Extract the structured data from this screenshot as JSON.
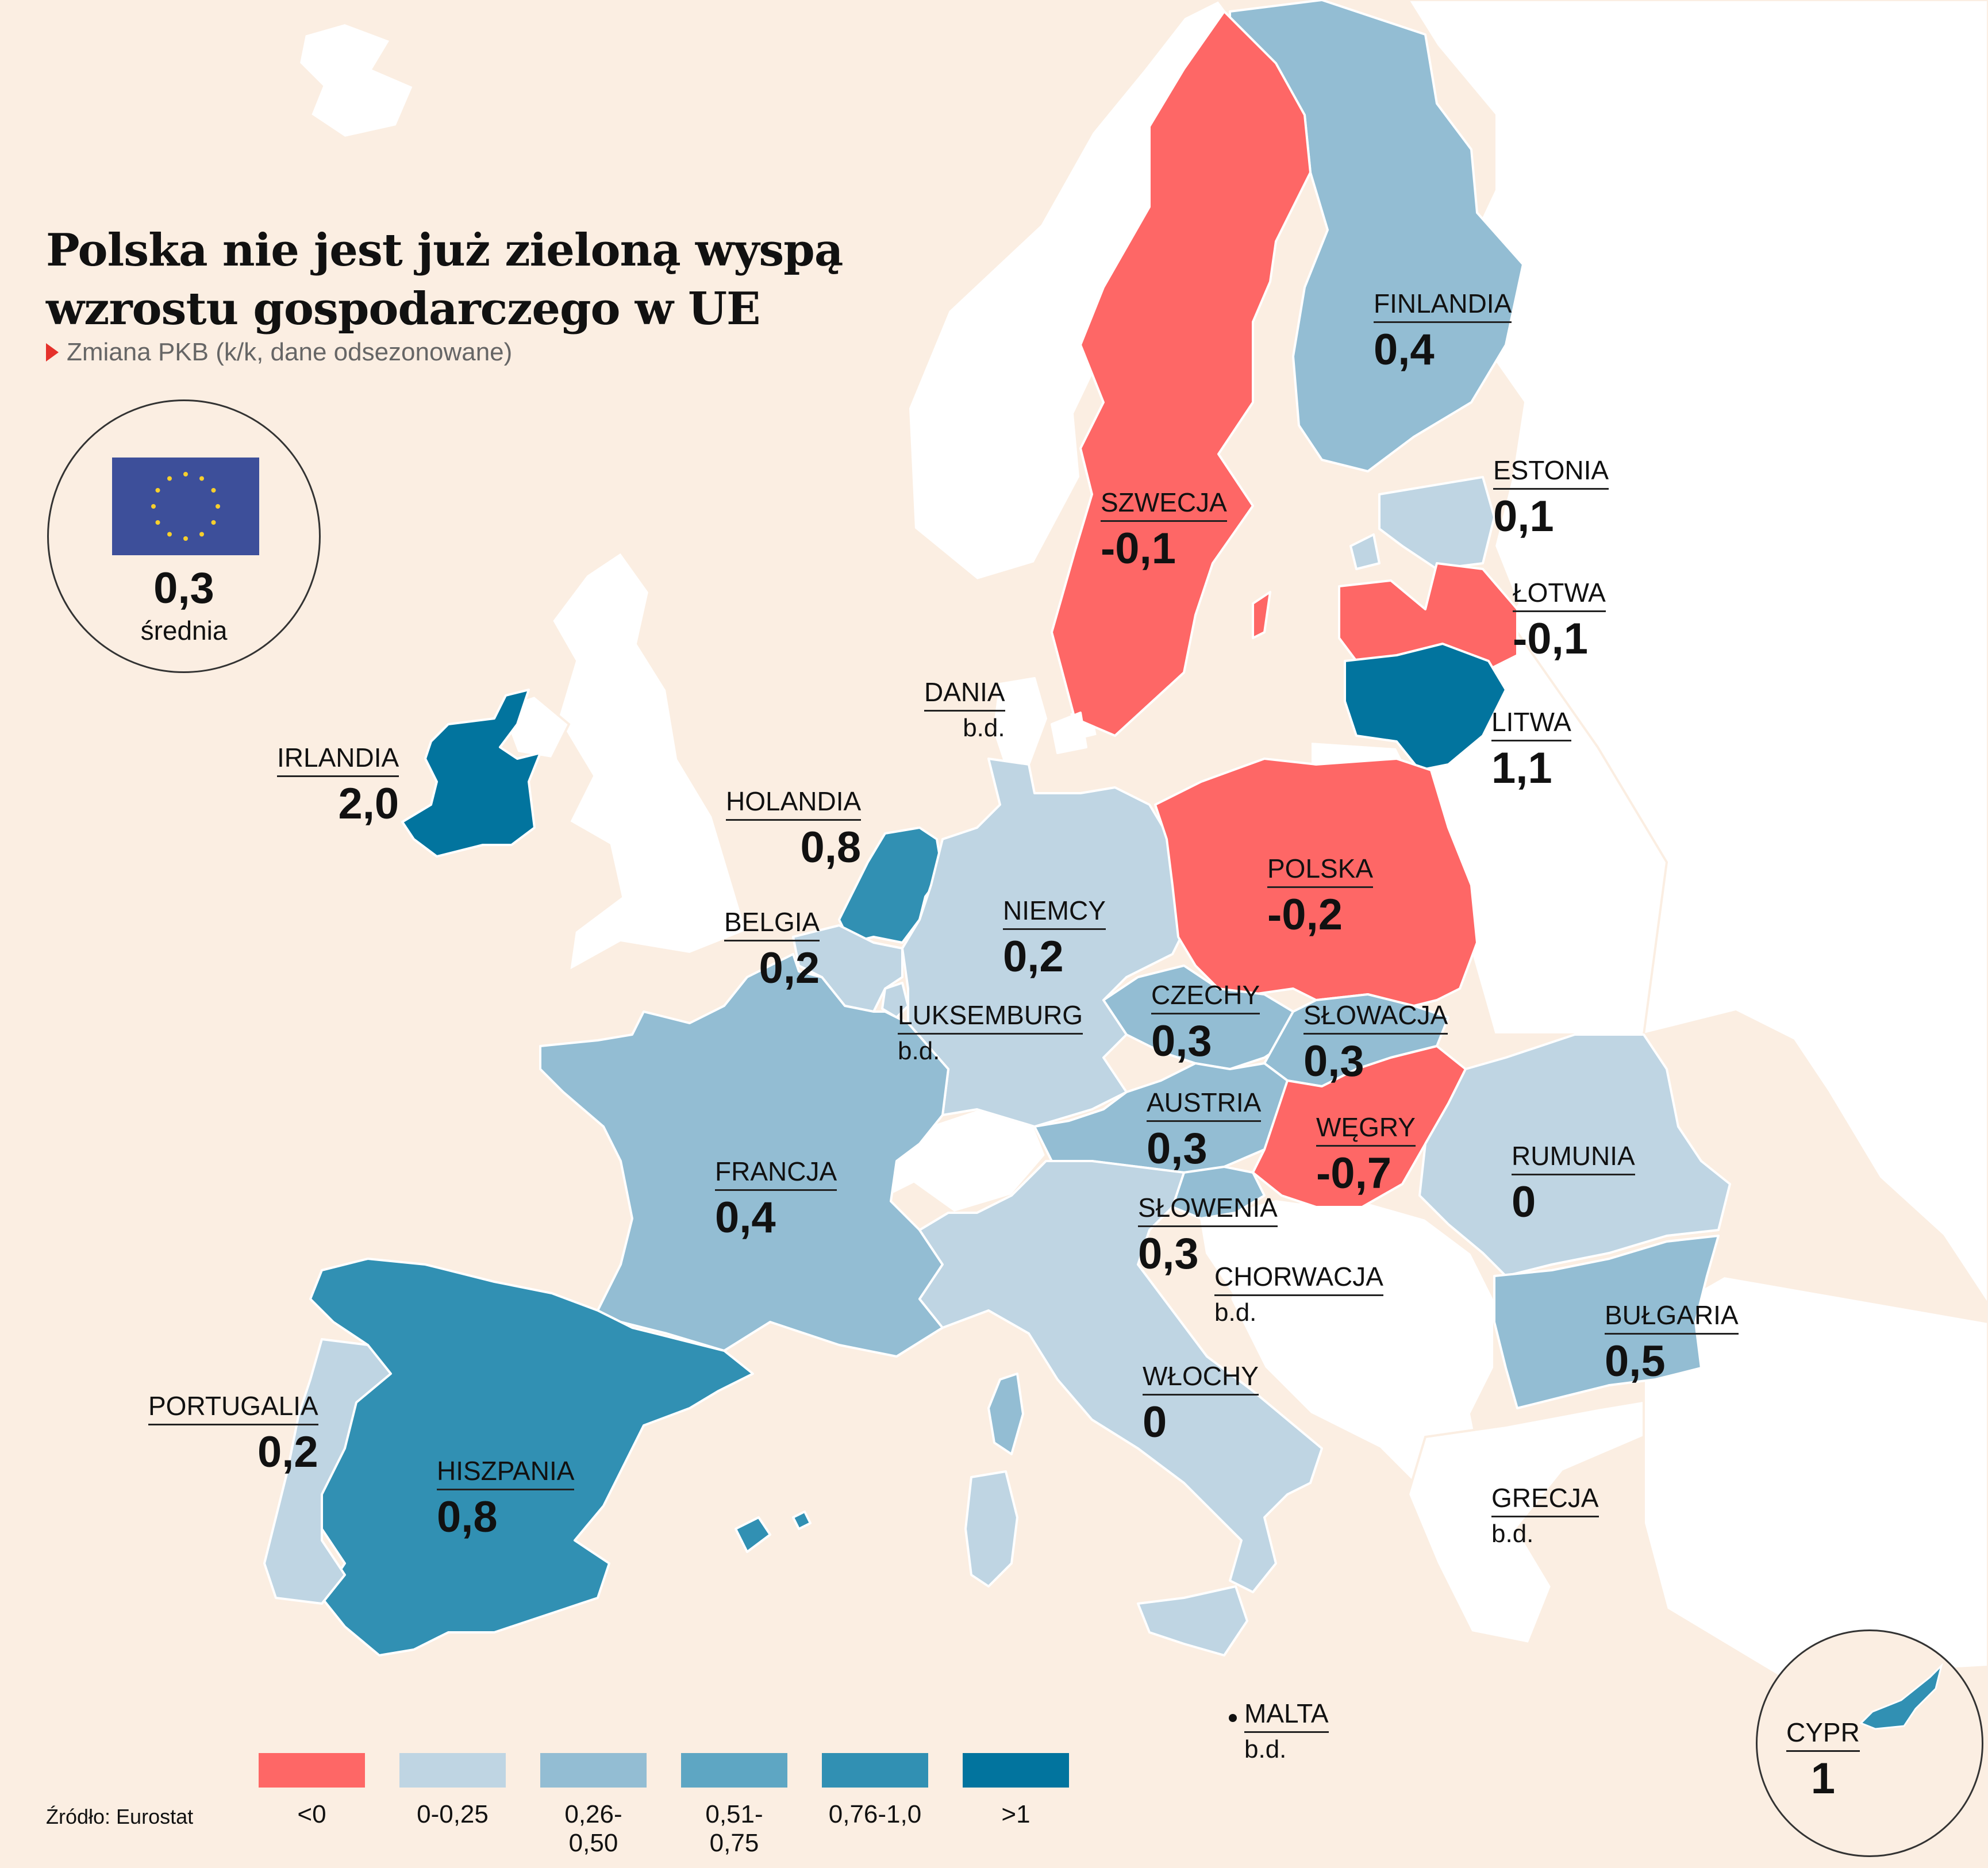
{
  "title_line1": "Polska nie jest już zieloną wyspą",
  "title_line2": "wzrostu gospodarczego w UE",
  "subtitle": "Zmiana PKB (k/k, dane odsezonowane)",
  "average": {
    "value": "0,3",
    "label": "średnia"
  },
  "source": "Źródło: Eurostat",
  "no_data": "b.d.",
  "colors": {
    "negative": "#fe6766",
    "c0_025": "#bfd5e3",
    "c026_050": "#93bdd3",
    "c051_075": "#5ea6c3",
    "c076_100": "#3190b3",
    "over1": "#02749e",
    "nodata": "#ffffff",
    "background": "#fbeee2"
  },
  "legend": [
    {
      "label": "<0",
      "color": "#fe6766"
    },
    {
      "label": "0-0,25",
      "color": "#bfd5e3"
    },
    {
      "label": "0,26-0,50",
      "color": "#93bdd3"
    },
    {
      "label": "0,51-0,75",
      "color": "#5ea6c3"
    },
    {
      "label": "0,76-1,0",
      "color": "#3190b3"
    },
    {
      "label": ">1",
      "color": "#02749e"
    }
  ],
  "countries": {
    "finlandia": {
      "name": "FINLANDIA",
      "value": "0,4"
    },
    "estonia": {
      "name": "ESTONIA",
      "value": "0,1"
    },
    "szwecja": {
      "name": "SZWECJA",
      "value": "-0,1"
    },
    "lotwa": {
      "name": "ŁOTWA",
      "value": "-0,1"
    },
    "litwa": {
      "name": "LITWA",
      "value": "1,1"
    },
    "dania": {
      "name": "DANIA",
      "value": "b.d."
    },
    "irlandia": {
      "name": "IRLANDIA",
      "value": "2,0"
    },
    "holandia": {
      "name": "HOLANDIA",
      "value": "0,8"
    },
    "belgia": {
      "name": "BELGIA",
      "value": "0,2"
    },
    "niemcy": {
      "name": "NIEMCY",
      "value": "0,2"
    },
    "polska": {
      "name": "POLSKA",
      "value": "-0,2"
    },
    "luksemburg": {
      "name": "LUKSEMBURG",
      "value": "b.d."
    },
    "czechy": {
      "name": "CZECHY",
      "value": "0,3"
    },
    "slowacja": {
      "name": "SŁOWACJA",
      "value": "0,3"
    },
    "austria": {
      "name": "AUSTRIA",
      "value": "0,3"
    },
    "wegry": {
      "name": "WĘGRY",
      "value": "-0,7"
    },
    "francja": {
      "name": "FRANCJA",
      "value": "0,4"
    },
    "slowenia": {
      "name": "SŁOWENIA",
      "value": "0,3"
    },
    "chorwacja": {
      "name": "CHORWACJA",
      "value": "b.d."
    },
    "rumunia": {
      "name": "RUMUNIA",
      "value": "0"
    },
    "bulgaria": {
      "name": "BUŁGARIA",
      "value": "0,5"
    },
    "portugalia": {
      "name": "PORTUGALIA",
      "value": "0,2"
    },
    "hiszpania": {
      "name": "HISZPANIA",
      "value": "0,8"
    },
    "wlochy": {
      "name": "WŁOCHY",
      "value": "0"
    },
    "grecja": {
      "name": "GRECJA",
      "value": "b.d."
    },
    "malta": {
      "name": "MALTA",
      "value": "b.d."
    },
    "cypr": {
      "name": "CYPR",
      "value": "1"
    }
  }
}
